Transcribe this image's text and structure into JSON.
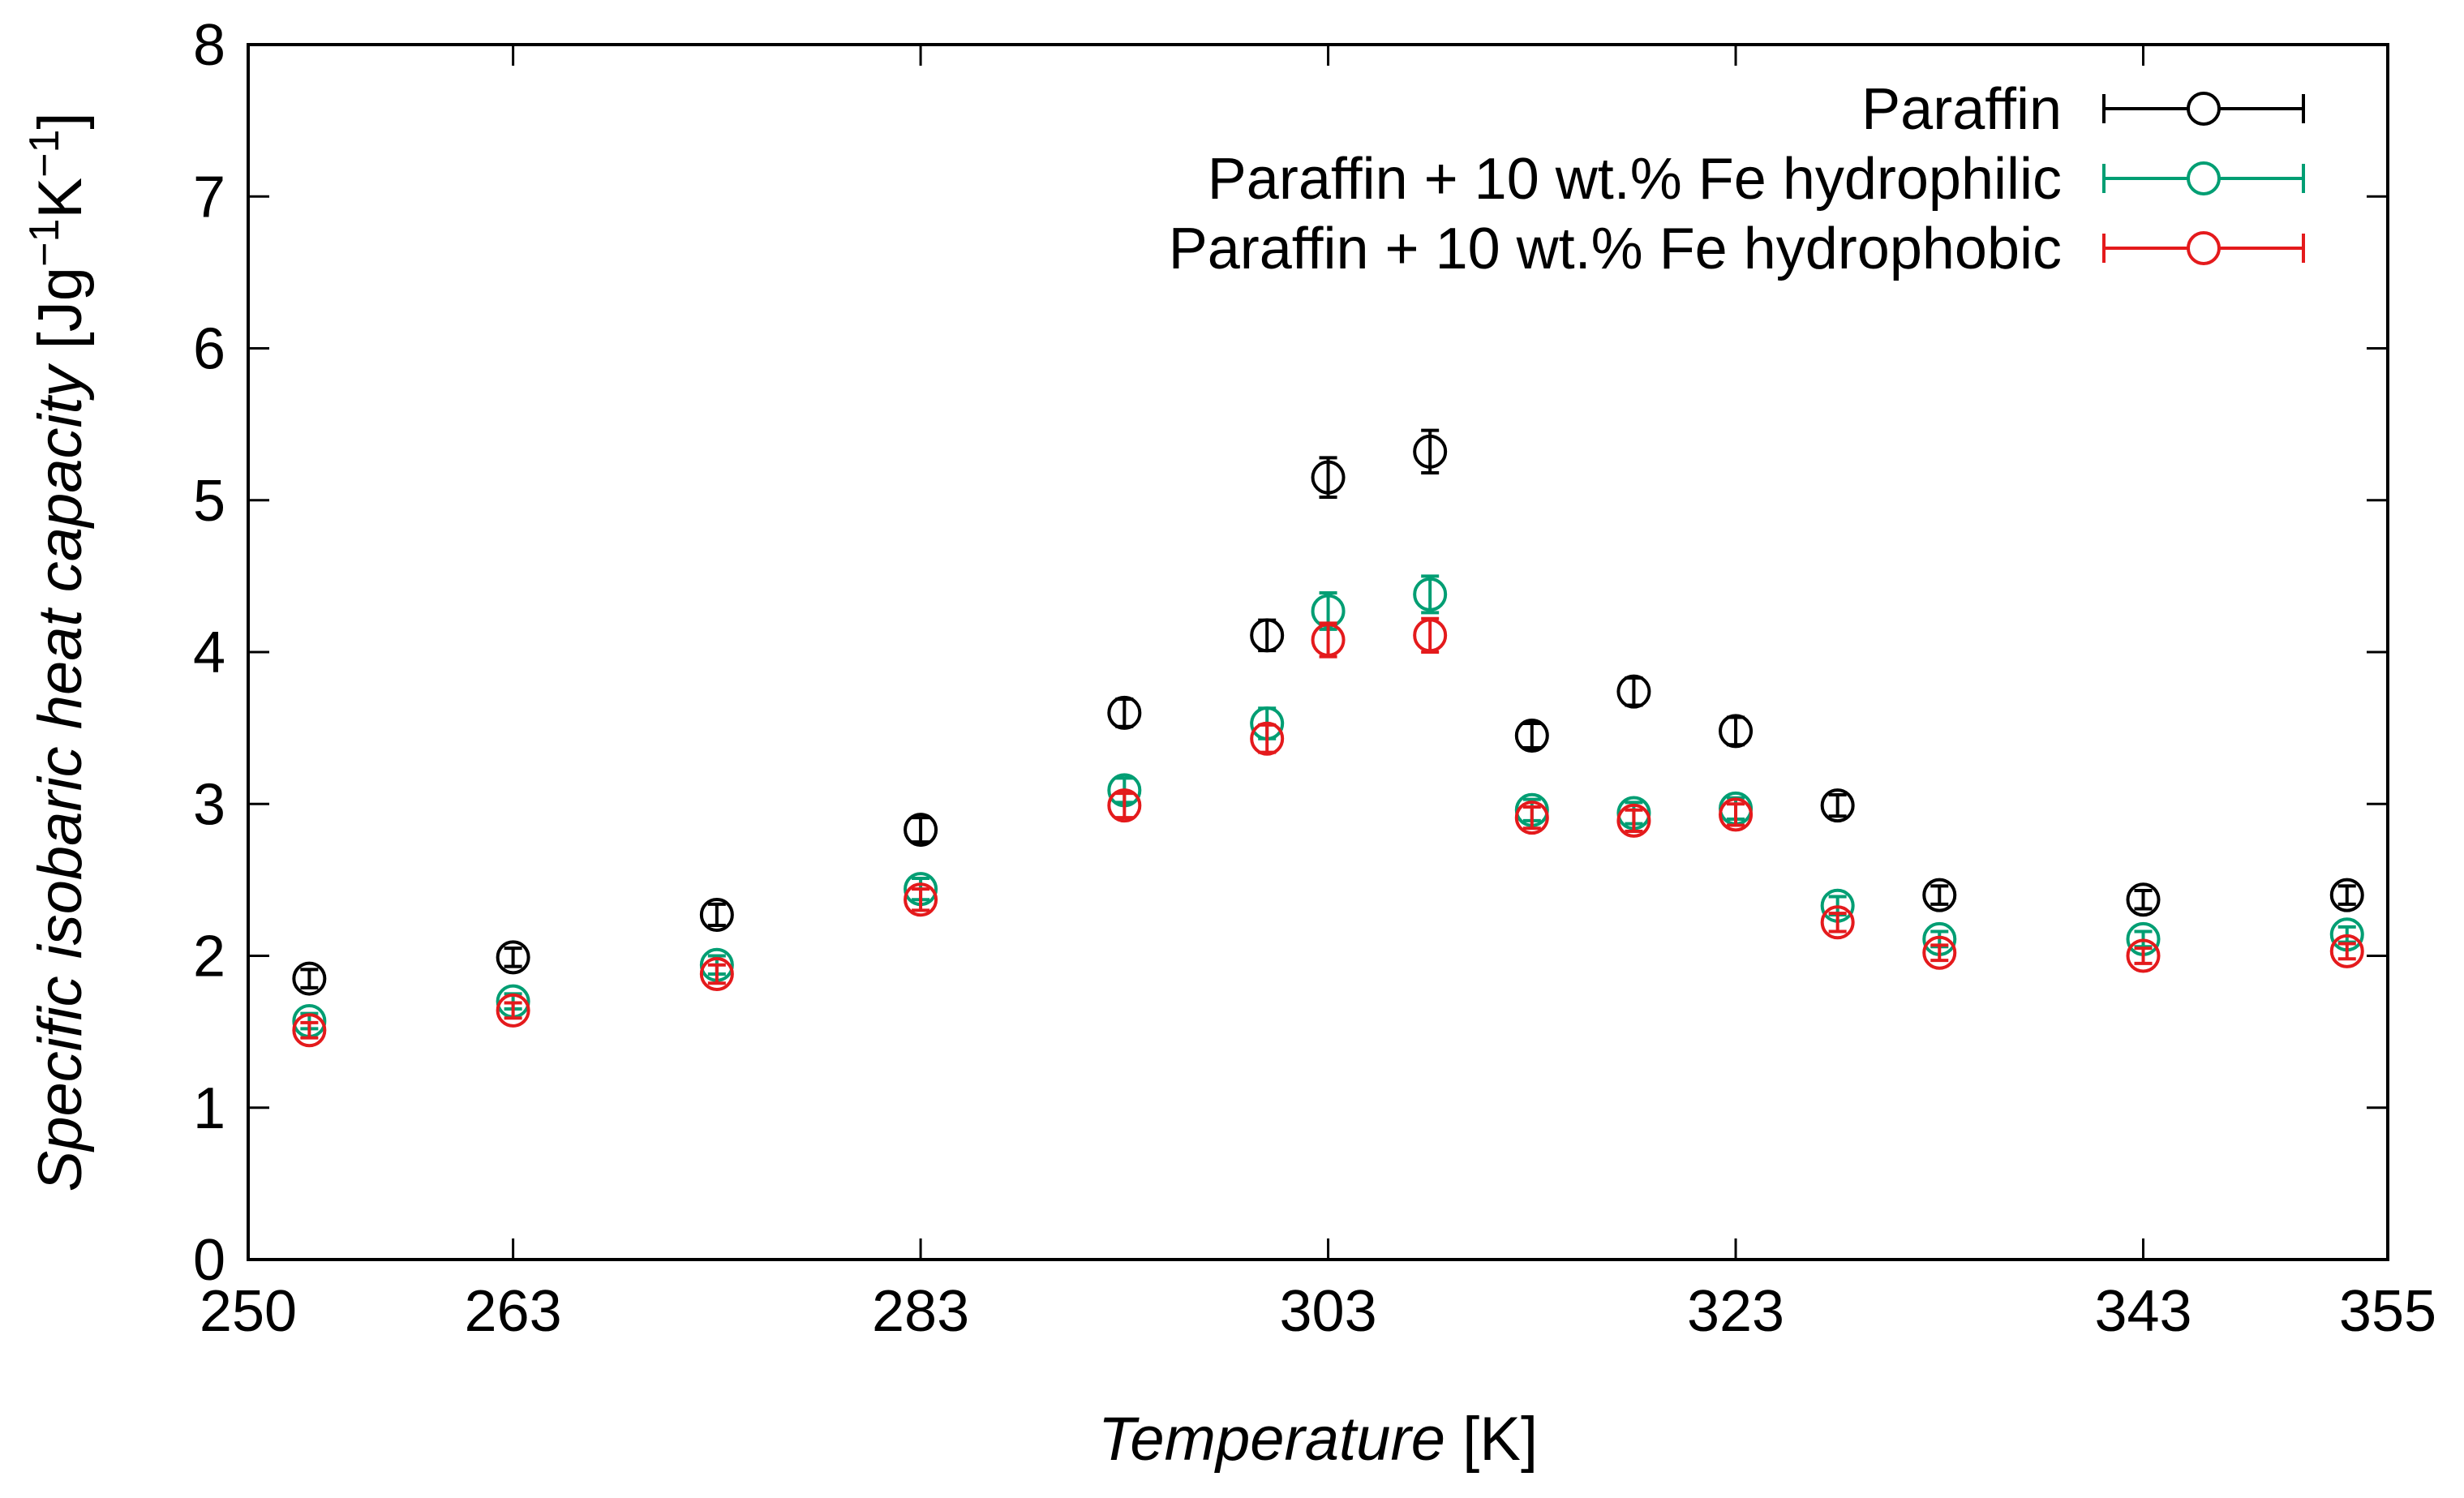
{
  "chart_data": {
    "type": "scatter",
    "title": "",
    "xlabel": {
      "italic": "Temperature",
      "unit": " [K]"
    },
    "ylabel": {
      "italic": "Specific isobaric heat capacity",
      "unit": "[Jg",
      "sup1": "−1",
      "mid": "K",
      "sup2": "−1",
      "end": "]"
    },
    "xlim": [
      250,
      355
    ],
    "ylim": [
      0,
      8
    ],
    "xticks": [
      250,
      263,
      283,
      303,
      323,
      343,
      355
    ],
    "yticks": [
      0,
      1,
      2,
      3,
      4,
      5,
      6,
      7,
      8
    ],
    "legend_position": "top-right",
    "x": [
      253,
      263,
      273,
      283,
      293,
      300,
      303,
      308,
      313,
      318,
      323,
      328,
      333,
      343,
      353
    ],
    "series": [
      {
        "name": "Paraffin",
        "color": "#000000",
        "values": [
          1.85,
          1.99,
          2.27,
          2.83,
          3.6,
          4.11,
          5.15,
          5.32,
          3.45,
          3.74,
          3.48,
          2.99,
          2.4,
          2.37,
          2.4
        ],
        "errors": [
          0.06,
          0.06,
          0.07,
          0.08,
          0.09,
          0.1,
          0.13,
          0.14,
          0.08,
          0.09,
          0.09,
          0.07,
          0.06,
          0.06,
          0.06
        ]
      },
      {
        "name": "Paraffin + 10 wt.% Fe hydrophilic",
        "color": "#009e73",
        "values": [
          1.57,
          1.7,
          1.94,
          2.44,
          3.09,
          3.53,
          4.27,
          4.38,
          2.96,
          2.94,
          2.97,
          2.33,
          2.11,
          2.11,
          2.14
        ],
        "errors": [
          0.05,
          0.05,
          0.06,
          0.07,
          0.08,
          0.1,
          0.12,
          0.12,
          0.07,
          0.07,
          0.07,
          0.06,
          0.05,
          0.05,
          0.05
        ]
      },
      {
        "name": "Paraffin + 10 wt.% Fe hydrophobic",
        "color": "#e41a1c",
        "values": [
          1.51,
          1.64,
          1.88,
          2.37,
          2.99,
          3.43,
          4.08,
          4.11,
          2.91,
          2.89,
          2.93,
          2.22,
          2.02,
          2.0,
          2.03
        ],
        "errors": [
          0.05,
          0.05,
          0.06,
          0.07,
          0.08,
          0.09,
          0.11,
          0.11,
          0.07,
          0.07,
          0.07,
          0.06,
          0.05,
          0.05,
          0.05
        ]
      }
    ]
  }
}
